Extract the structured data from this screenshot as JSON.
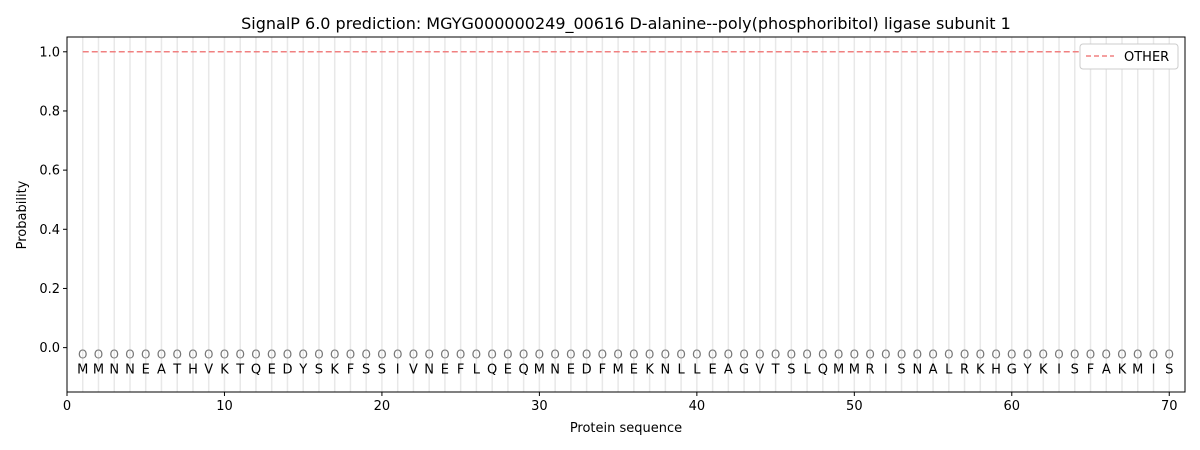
{
  "chart_data": {
    "type": "line",
    "title": "SignalP 6.0 prediction: MGYG000000249_00616 D-alanine--poly(phosphoribitol) ligase subunit 1",
    "xlabel": "Protein sequence",
    "ylabel": "Probability",
    "xlim": [
      0,
      71
    ],
    "ylim": [
      -0.15,
      1.05
    ],
    "xticks": [
      0,
      10,
      20,
      30,
      40,
      50,
      60,
      70
    ],
    "yticks": [
      0.0,
      0.2,
      0.4,
      0.6,
      0.8,
      1.0
    ],
    "ytick_labels": [
      "0.0",
      "0.2",
      "0.4",
      "0.6",
      "0.8",
      "1.0"
    ],
    "grid": "vertical lines at each residue",
    "legend_position": "top-right",
    "sequence": "MMNNEATHVKTQEDYSKFSSIVNEFLQEQMNEDFMEKNLLEAGVTSLQMMRISNALRKHGYKISFAKMIS",
    "region_label": "O",
    "series": [
      {
        "name": "OTHER",
        "color": "#f08080",
        "style": "dashed",
        "x_range": [
          1,
          70
        ],
        "value": 1.0
      }
    ]
  }
}
